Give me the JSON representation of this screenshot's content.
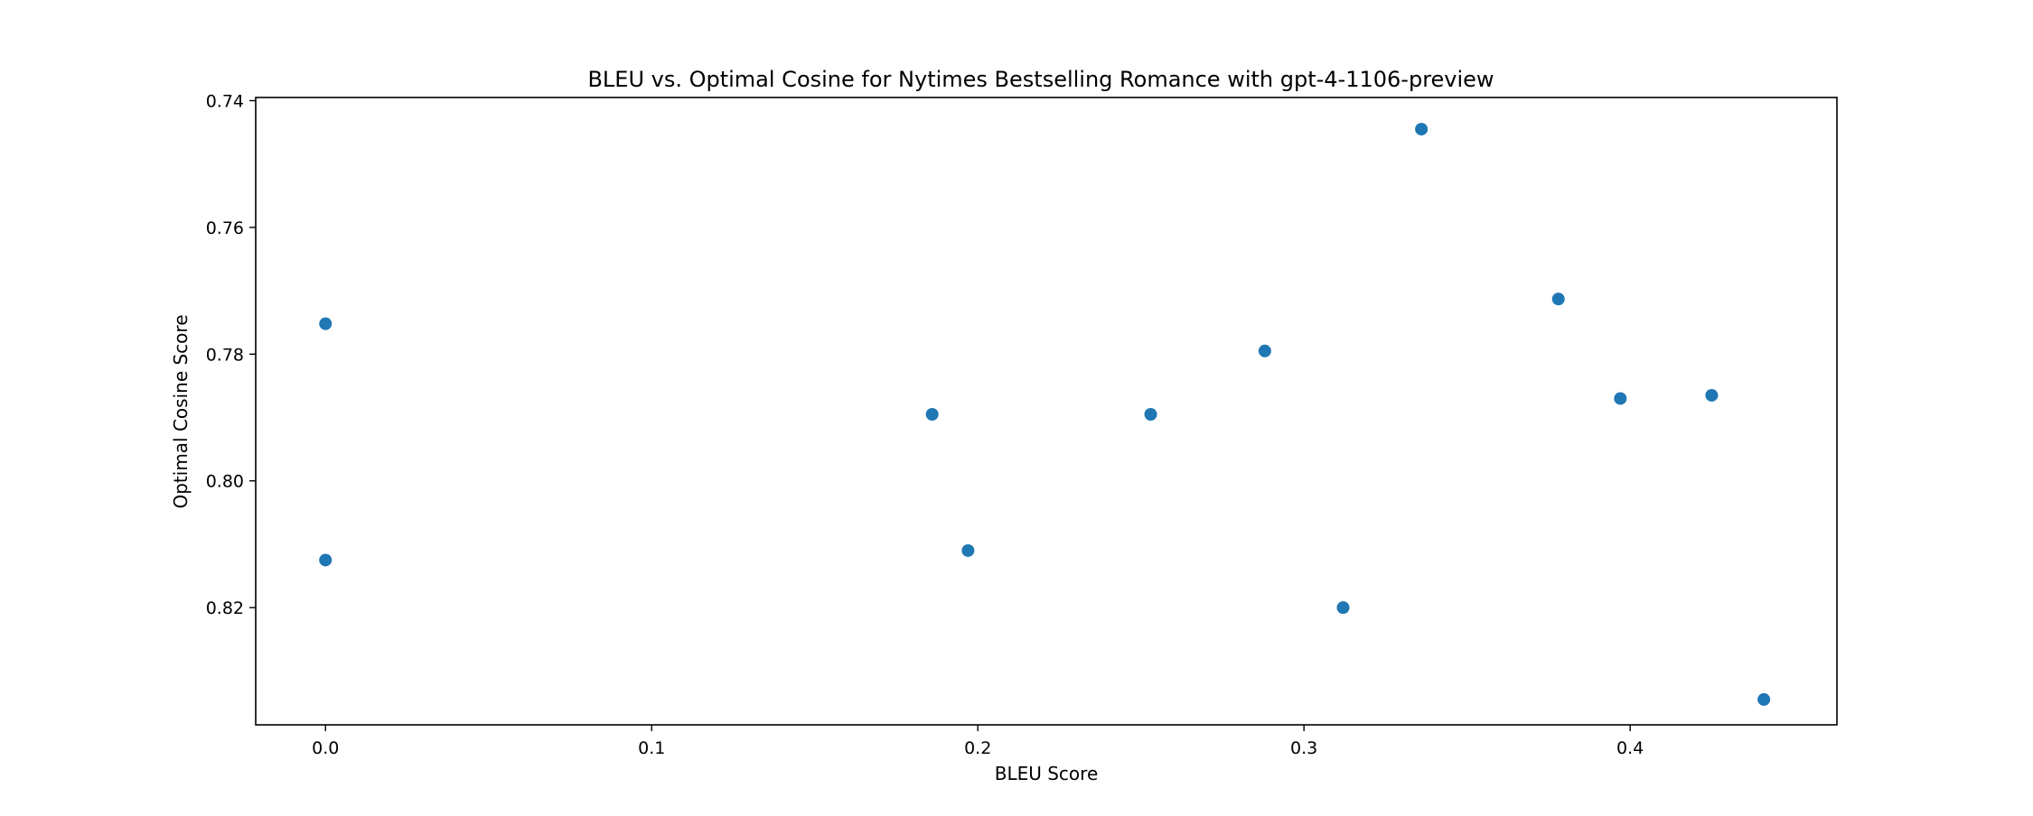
{
  "chart_data": {
    "type": "scatter",
    "title": "BLEU vs. Optimal Cosine for Nytimes Bestselling Romance with gpt-4-1106-preview",
    "xlabel": "BLEU Score",
    "ylabel": "Optimal Cosine Score",
    "xlim": [
      -0.0214,
      0.4634
    ],
    "ylim": [
      0.8385,
      0.7395
    ],
    "y_inverted": true,
    "grid": false,
    "xticks": [
      0.0,
      0.1,
      0.2,
      0.3,
      0.4
    ],
    "xtick_labels": [
      "0.0",
      "0.1",
      "0.2",
      "0.3",
      "0.4"
    ],
    "yticks": [
      0.74,
      0.76,
      0.78,
      0.8,
      0.82
    ],
    "ytick_labels": [
      "0.74",
      "0.76",
      "0.78",
      "0.80",
      "0.82"
    ],
    "marker_color": "#1f77b4",
    "points": [
      {
        "x": 0.0,
        "y": 0.7752
      },
      {
        "x": 0.0,
        "y": 0.8125
      },
      {
        "x": 0.186,
        "y": 0.7895
      },
      {
        "x": 0.197,
        "y": 0.811
      },
      {
        "x": 0.253,
        "y": 0.7895
      },
      {
        "x": 0.288,
        "y": 0.7795
      },
      {
        "x": 0.312,
        "y": 0.82
      },
      {
        "x": 0.336,
        "y": 0.7445
      },
      {
        "x": 0.378,
        "y": 0.7713
      },
      {
        "x": 0.397,
        "y": 0.787
      },
      {
        "x": 0.425,
        "y": 0.7865
      },
      {
        "x": 0.441,
        "y": 0.8345
      }
    ]
  }
}
